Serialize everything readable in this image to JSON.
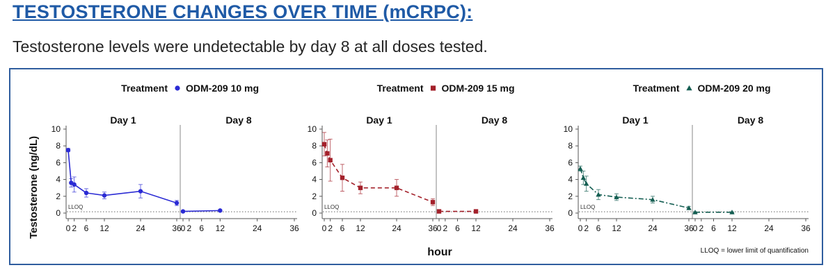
{
  "slide": {
    "title": "TESTOSTERONE CHANGES OVER TIME (mCRPC):",
    "subtitle": "Testosterone levels were undetectable by day 8 at all doses tested."
  },
  "chart_data": {
    "type": "line",
    "ylabel": "Testosterone (ng/dL)",
    "xlabel": "hour",
    "legend_title": "Treatment",
    "facet_labels": [
      "Day 1",
      "Day 8"
    ],
    "yticks": [
      0,
      2,
      4,
      6,
      8,
      10
    ],
    "xticks": [
      "0",
      "2",
      "6",
      "12",
      "24",
      "36"
    ],
    "xlim": [
      0,
      36
    ],
    "ylim": [
      0,
      10
    ],
    "lloq_label": "LLOQ",
    "footnote": "LLOQ = lower limit of quantification",
    "colors": {
      "odm10": "#2b2bd4",
      "odm15": "#a3202a",
      "odm20": "#145e52",
      "axis": "#555555",
      "frame": "#2f5d9e"
    },
    "series": [
      {
        "name": "ODM-209 10 mg",
        "marker": "circle",
        "line_style": "solid",
        "day1": {
          "x": [
            0,
            1,
            2,
            6,
            12,
            24,
            36
          ],
          "y": [
            7.5,
            3.6,
            3.4,
            2.4,
            2.1,
            2.6,
            1.2
          ],
          "err": [
            0.2,
            0.5,
            0.9,
            0.5,
            0.4,
            0.8,
            0.3
          ]
        },
        "day8": {
          "x": [
            0,
            12
          ],
          "y": [
            0.2,
            0.3
          ],
          "err": [
            0.1,
            0.1
          ]
        }
      },
      {
        "name": "ODM-209 15 mg",
        "marker": "square",
        "line_style": "dashed",
        "day1": {
          "x": [
            0,
            1,
            2,
            6,
            12,
            24,
            36
          ],
          "y": [
            8.2,
            7.1,
            6.3,
            4.2,
            3.0,
            3.0,
            1.3
          ],
          "err": [
            1.4,
            1.6,
            2.5,
            1.6,
            0.7,
            1.0,
            0.4
          ]
        },
        "day8": {
          "x": [
            0,
            12
          ],
          "y": [
            0.2,
            0.2
          ],
          "err": [
            0.05,
            0.05
          ]
        }
      },
      {
        "name": "ODM-209 20 mg",
        "marker": "triangle",
        "line_style": "dashdot",
        "day1": {
          "x": [
            0,
            1,
            2,
            6,
            12,
            24,
            36
          ],
          "y": [
            5.3,
            4.2,
            3.5,
            2.2,
            1.9,
            1.6,
            0.6
          ],
          "err": [
            0.3,
            0.8,
            0.9,
            0.6,
            0.4,
            0.4,
            0.2
          ]
        },
        "day8": {
          "x": [
            0,
            12
          ],
          "y": [
            0.1,
            0.1
          ],
          "err": [
            0.05,
            0.05
          ]
        }
      }
    ]
  }
}
